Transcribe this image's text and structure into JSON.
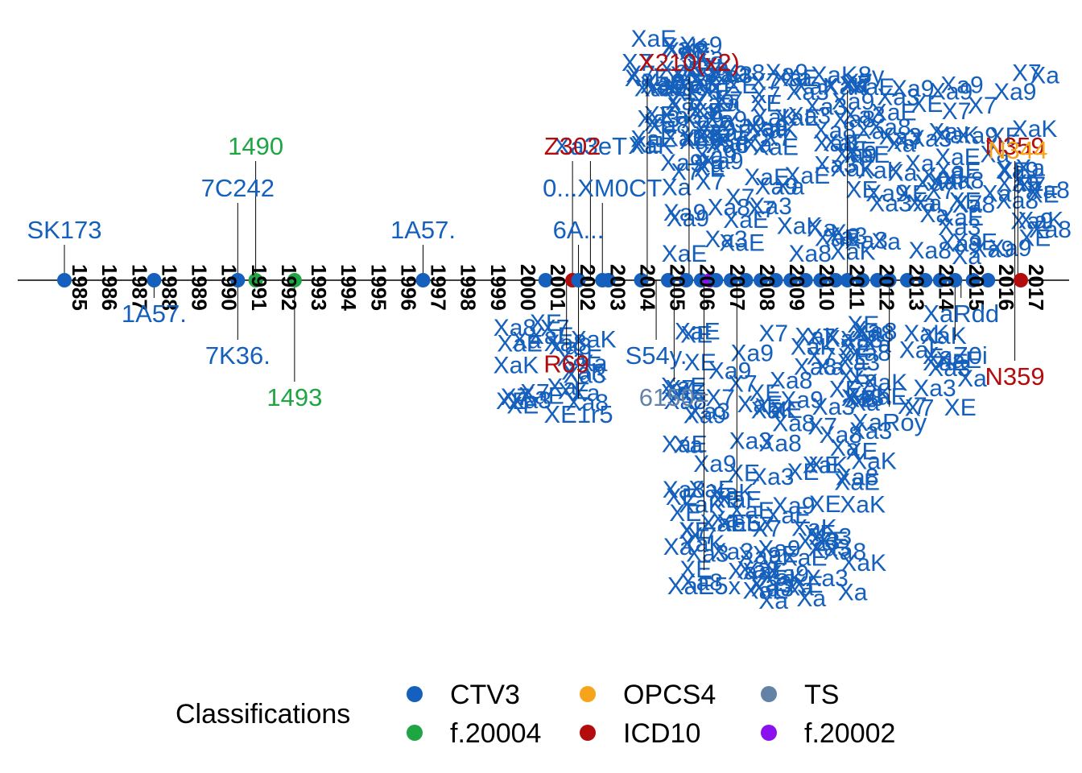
{
  "chart_data": {
    "type": "timeline",
    "title": "",
    "xlabel": "",
    "ylabel": "",
    "x_range": [
      1985,
      2017
    ],
    "year_labels": [
      "1985",
      "1986",
      "1987",
      "1988",
      "1989",
      "1990",
      "1991",
      "1992",
      "1993",
      "1994",
      "1995",
      "1996",
      "1997",
      "1998",
      "1999",
      "2000",
      "2001",
      "2002",
      "2003",
      "2004",
      "2005",
      "2006",
      "2007",
      "2008",
      "2009",
      "2010",
      "2011",
      "2012",
      "2013",
      "2014",
      "2015",
      "2016",
      "2017"
    ],
    "legend": {
      "title": "Classifications",
      "placement": "bottom",
      "items": [
        {
          "name": "CTV3",
          "color": "#1560BD"
        },
        {
          "name": "f.20004",
          "color": "#1FA544"
        },
        {
          "name": "OPCS4",
          "color": "#F5A41C"
        },
        {
          "name": "ICD10",
          "color": "#B30C0C"
        },
        {
          "name": "TS",
          "color": "#6382A6"
        },
        {
          "name": "f.20002",
          "color": "#8B10EE"
        }
      ]
    },
    "points": [
      {
        "year": 1985.0,
        "class": "CTV3"
      },
      {
        "year": 1988.0,
        "class": "CTV3"
      },
      {
        "year": 1990.8,
        "class": "CTV3"
      },
      {
        "year": 1991.4,
        "class": "f.20004"
      },
      {
        "year": 1992.7,
        "class": "f.20004"
      },
      {
        "year": 1997.0,
        "class": "CTV3"
      },
      {
        "year": 2001.1,
        "class": "CTV3"
      },
      {
        "year": 2002.0,
        "class": "ICD10"
      },
      {
        "year": 2002.2,
        "class": "CTV3"
      },
      {
        "year": 2003.0,
        "class": "CTV3"
      },
      {
        "year": 2003.2,
        "class": "CTV3"
      },
      {
        "year": 2004.3,
        "class": "CTV3"
      },
      {
        "year": 2005.2,
        "class": "CTV3"
      },
      {
        "year": 2005.8,
        "class": "CTV3"
      },
      {
        "year": 2006.3,
        "class": "CTV3"
      },
      {
        "year": 2006.6,
        "class": "f.20002"
      },
      {
        "year": 2006.8,
        "class": "CTV3"
      },
      {
        "year": 2007.3,
        "class": "CTV3"
      },
      {
        "year": 2007.8,
        "class": "CTV3"
      },
      {
        "year": 2008.3,
        "class": "CTV3"
      },
      {
        "year": 2008.8,
        "class": "CTV3"
      },
      {
        "year": 2009.3,
        "class": "CTV3"
      },
      {
        "year": 2009.8,
        "class": "CTV3"
      },
      {
        "year": 2010.3,
        "class": "CTV3"
      },
      {
        "year": 2010.8,
        "class": "CTV3"
      },
      {
        "year": 2011.2,
        "class": "CTV3"
      },
      {
        "year": 2011.7,
        "class": "CTV3"
      },
      {
        "year": 2012.2,
        "class": "CTV3"
      },
      {
        "year": 2012.6,
        "class": "CTV3"
      },
      {
        "year": 2013.2,
        "class": "CTV3"
      },
      {
        "year": 2013.8,
        "class": "CTV3"
      },
      {
        "year": 2014.3,
        "class": "CTV3"
      },
      {
        "year": 2014.8,
        "class": "CTV3"
      },
      {
        "year": 2015.4,
        "class": "CTV3"
      },
      {
        "year": 2015.9,
        "class": "CTV3"
      },
      {
        "year": 2017.0,
        "class": "ICD10"
      }
    ],
    "labels": [
      {
        "text": "SK173",
        "year": 1985.0,
        "tier": 1,
        "class": "CTV3"
      },
      {
        "text": "1A57.",
        "year": 1988.0,
        "tier": -1,
        "class": "CTV3"
      },
      {
        "text": "7C242",
        "year": 1990.8,
        "tier": 2,
        "class": "CTV3"
      },
      {
        "text": "7K36.",
        "year": 1990.8,
        "tier": -2,
        "class": "CTV3"
      },
      {
        "text": "1490",
        "year": 1991.4,
        "tier": 3,
        "class": "f.20004"
      },
      {
        "text": "1493",
        "year": 1992.7,
        "tier": -3,
        "class": "f.20004"
      },
      {
        "text": "1A57.",
        "year": 1997.0,
        "tier": 1,
        "class": "CTV3"
      },
      {
        "text": "6A...",
        "year": 2002.2,
        "tier": 1,
        "class": "CTV3"
      },
      {
        "text": "0...XM0CT",
        "year": 2003.0,
        "tier": 2,
        "class": "CTV3"
      },
      {
        "text": "Xa3eT",
        "year": 2002.6,
        "tier": 3,
        "class": "CTV3"
      },
      {
        "text": "Z302",
        "year": 2002.0,
        "tier": 3,
        "class": "ICD10"
      },
      {
        "text": "X7...",
        "year": 2004.5,
        "tier": 5,
        "class": "CTV3"
      },
      {
        "text": "X210(x2)",
        "year": 2005.9,
        "tier": 5,
        "class": "ICD10"
      },
      {
        "text": "N359",
        "year": 2016.8,
        "tier": 3,
        "class": "ICD10"
      },
      {
        "text": "N344",
        "year": 2016.9,
        "tier": 2.9,
        "class": "OPCS4"
      },
      {
        "text": "N359",
        "year": 2016.8,
        "tier": -2.5,
        "class": "ICD10"
      },
      {
        "text": "S54y.",
        "year": 2004.8,
        "tier": -2,
        "class": "CTV3"
      },
      {
        "text": "R69",
        "year": 2001.8,
        "tier": -2.2,
        "class": "ICD10"
      },
      {
        "text": "XE1r5",
        "year": 2002.2,
        "tier": -3.4,
        "class": "CTV3"
      },
      {
        "text": "6150=",
        "year": 2005.4,
        "tier": -3,
        "class": "TS"
      },
      {
        "text": "XaZ0i",
        "year": 2014.8,
        "tier": -2,
        "class": "CTV3"
      },
      {
        "text": "XaE5x",
        "year": 2006.4,
        "tier": -7.5,
        "class": "CTV3"
      },
      {
        "text": "XaRoy",
        "year": 2012.6,
        "tier": -3.6,
        "class": "CTV3"
      },
      {
        "text": "XaE5x",
        "year": 2007.5,
        "tier": -6,
        "class": "CTV3"
      },
      {
        "text": "XaK8y",
        "year": 2011.2,
        "tier": 4.7,
        "class": "CTV3"
      },
      {
        "text": "XaRdd",
        "year": 2015.0,
        "tier": -1,
        "class": "CTV3"
      }
    ]
  }
}
